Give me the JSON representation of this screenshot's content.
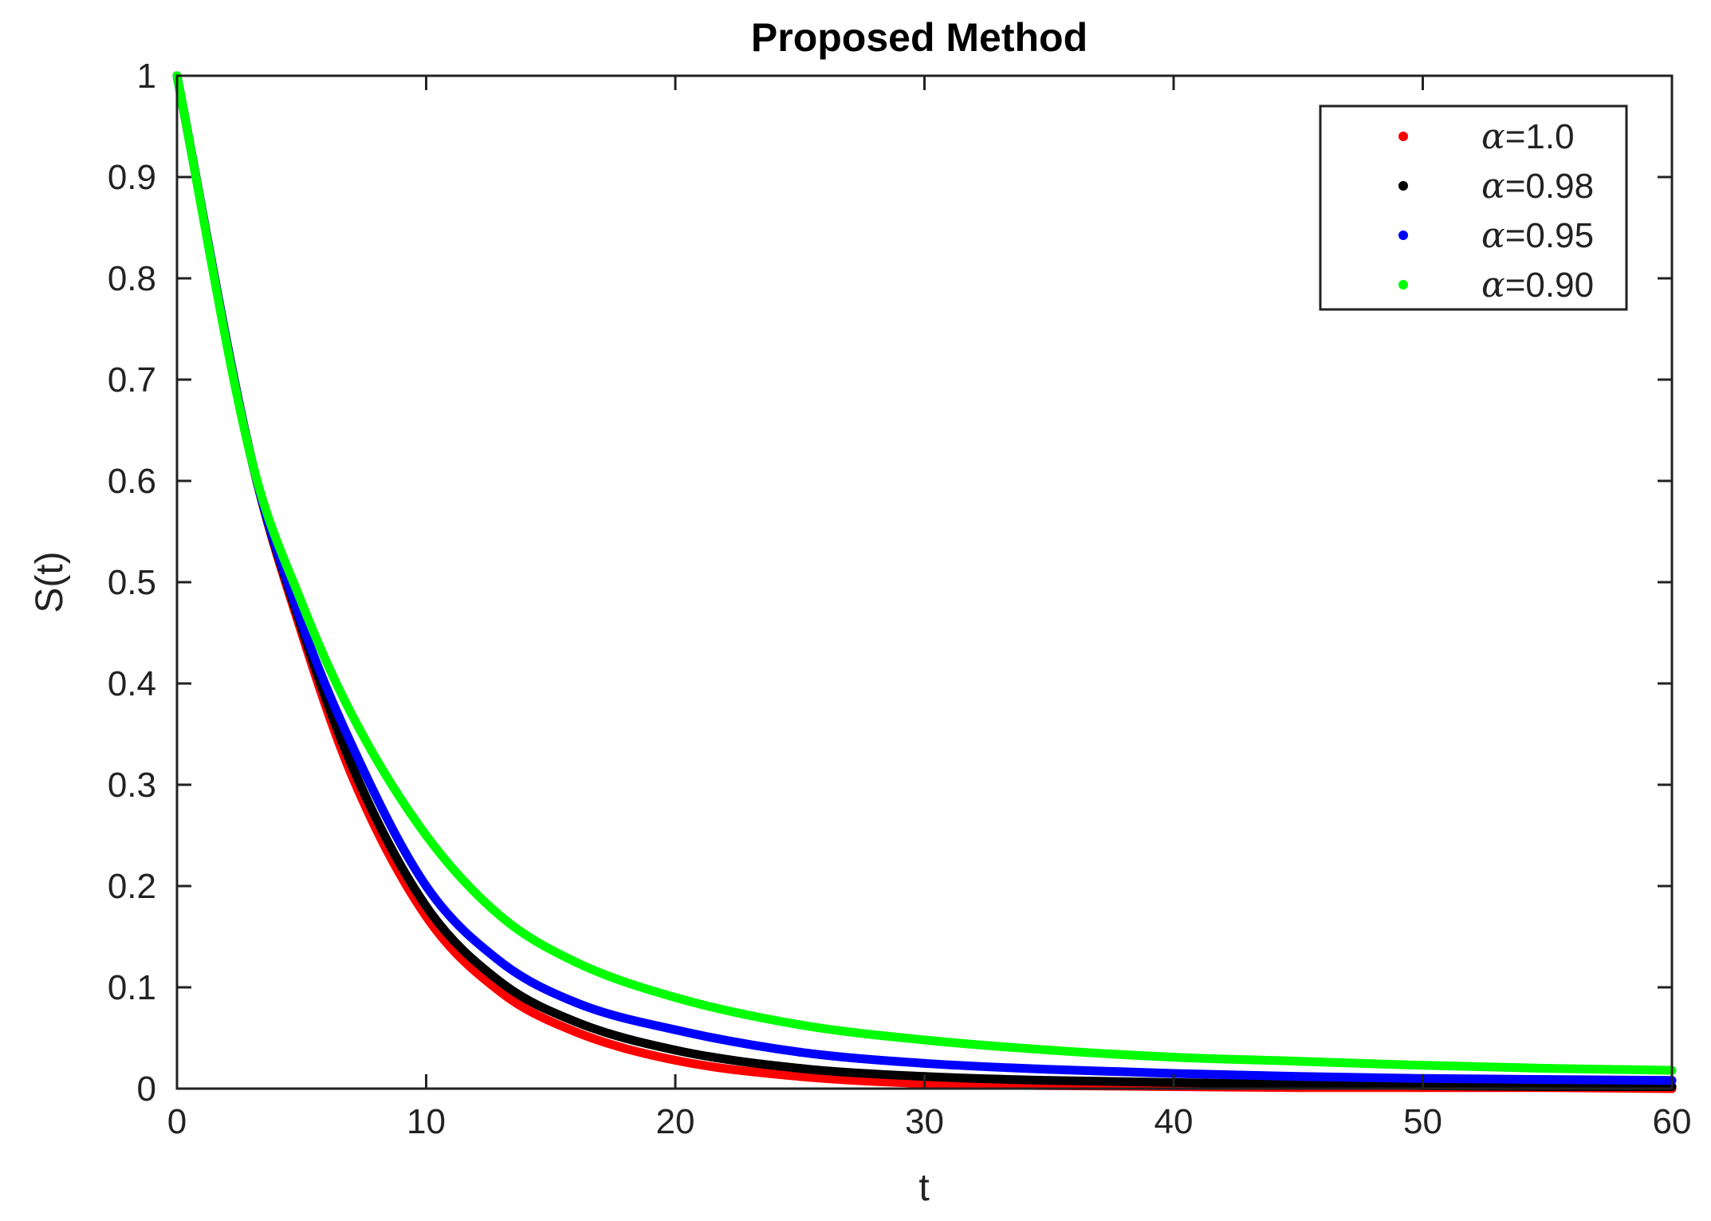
{
  "chart_data": {
    "type": "scatter",
    "title": "Proposed Method",
    "xlabel": "t",
    "ylabel": "S(t)",
    "xlim": [
      0,
      60
    ],
    "ylim": [
      0,
      1
    ],
    "xticks": [
      "0",
      "10",
      "20",
      "30",
      "40",
      "50",
      "60"
    ],
    "yticks": [
      "0",
      "0.1",
      "0.2",
      "0.3",
      "0.4",
      "0.5",
      "0.6",
      "0.7",
      "0.8",
      "0.9",
      "1"
    ],
    "grid": false,
    "legend_position": "top-right",
    "legend_symbol": "α",
    "series": [
      {
        "name": "=1.0",
        "color": "#ff0000",
        "x": [
          0,
          3,
          5,
          7,
          10,
          13,
          16,
          20,
          25,
          30,
          35,
          40,
          45,
          50,
          55,
          60
        ],
        "y": [
          1.0,
          0.62,
          0.45,
          0.31,
          0.17,
          0.095,
          0.056,
          0.028,
          0.012,
          0.005,
          0.003,
          0.002,
          0.001,
          0.001,
          0.001,
          0.0
        ]
      },
      {
        "name": "=0.98",
        "color": "#000000",
        "x": [
          0,
          3,
          5,
          7,
          10,
          13,
          16,
          20,
          25,
          30,
          35,
          40,
          45,
          50,
          55,
          60
        ],
        "y": [
          1.0,
          0.62,
          0.455,
          0.32,
          0.18,
          0.105,
          0.066,
          0.038,
          0.02,
          0.012,
          0.008,
          0.006,
          0.004,
          0.003,
          0.002,
          0.002
        ]
      },
      {
        "name": "=0.95",
        "color": "#0000ff",
        "x": [
          0,
          3,
          5,
          7,
          10,
          13,
          16,
          20,
          25,
          30,
          35,
          40,
          45,
          50,
          55,
          60
        ],
        "y": [
          1.0,
          0.62,
          0.46,
          0.34,
          0.2,
          0.125,
          0.085,
          0.058,
          0.036,
          0.025,
          0.019,
          0.015,
          0.012,
          0.01,
          0.009,
          0.008
        ]
      },
      {
        "name": "=0.90",
        "color": "#00ff00",
        "x": [
          0,
          3,
          5,
          7,
          10,
          13,
          16,
          20,
          25,
          30,
          35,
          40,
          45,
          50,
          55,
          60
        ],
        "y": [
          1.0,
          0.62,
          0.48,
          0.37,
          0.25,
          0.17,
          0.125,
          0.09,
          0.063,
          0.048,
          0.038,
          0.031,
          0.027,
          0.023,
          0.02,
          0.018
        ]
      }
    ]
  }
}
